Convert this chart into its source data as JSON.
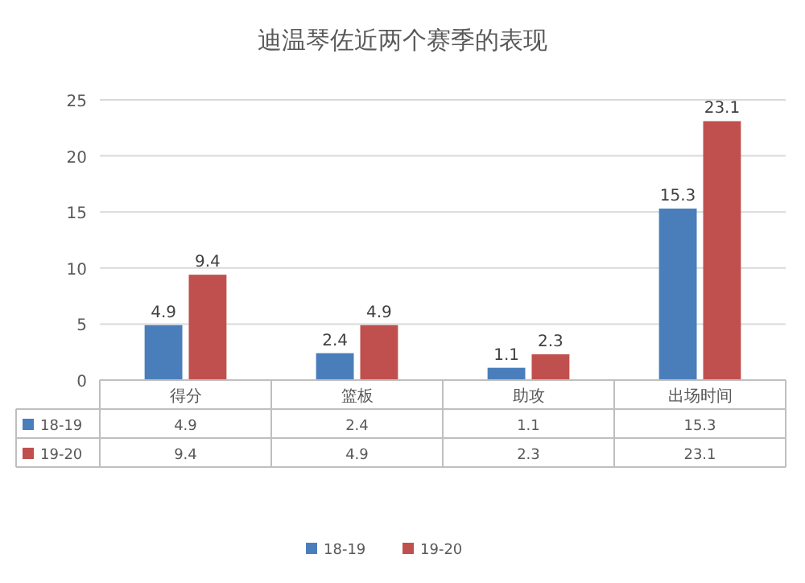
{
  "chart_data": {
    "type": "bar",
    "title": "迪温琴佐近两个赛季的表现",
    "categories": [
      "得分",
      "篮板",
      "助攻",
      "出场时间"
    ],
    "series": [
      {
        "name": "18-19",
        "color": "#4a7ebb",
        "values": [
          4.9,
          2.4,
          1.1,
          15.3
        ],
        "value_labels": [
          "4.9",
          "2.4",
          "1.1",
          "15.3"
        ]
      },
      {
        "name": "19-20",
        "color": "#c0504d",
        "values": [
          9.4,
          4.9,
          2.3,
          23.1
        ],
        "value_labels": [
          "9.4",
          "4.9",
          "2.3",
          "23.1"
        ]
      }
    ],
    "ylim": [
      0,
      25
    ],
    "yticks": [
      0,
      5,
      10,
      15,
      20,
      25
    ],
    "grid": "y",
    "legend": "bottom",
    "annotations": [
      "4.9",
      "2.4",
      "1.1",
      "15.3",
      "9.4",
      "4.9",
      "2.3",
      "23.1"
    ]
  }
}
